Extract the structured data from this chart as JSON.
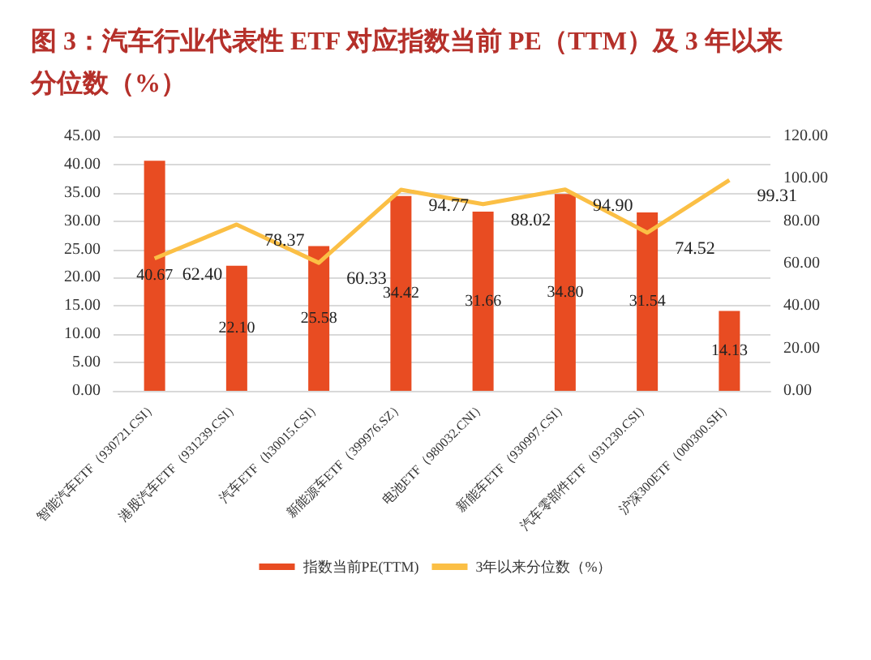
{
  "chart_data": {
    "type": "bar",
    "title": "图 3：汽车行业代表性 ETF 对应指数当前 PE（TTM）及 3 年以来分位数（%）",
    "categories": [
      "智能汽车ETF（930721.CSI）",
      "港股汽车ETF（931239.CSI）",
      "汽车ETF（h30015.CSI）",
      "新能源车ETF（399976.SZ）",
      "电池ETF（980032.CNI）",
      "新能车ETF（930997.CSI）",
      "汽车零部件ETF（931230.CSI）",
      "沪深300ETF（000300.SH）"
    ],
    "series": [
      {
        "name": "指数当前PE(TTM)",
        "color": "#e84c22",
        "values": [
          40.67,
          22.1,
          25.58,
          34.42,
          31.66,
          34.8,
          31.54,
          14.13
        ],
        "value_labels": [
          "40.67",
          "22.10",
          "25.58",
          "34.42",
          "31.66",
          "34.80",
          "31.54",
          "14.13"
        ]
      },
      {
        "name": "3年以来分位数（%）",
        "type": "line",
        "axis": "y2",
        "color": "#fbbf45",
        "marker": "none",
        "values": [
          62.4,
          78.37,
          60.33,
          94.77,
          88.02,
          94.9,
          74.52,
          99.31
        ],
        "value_labels": [
          "62.40",
          "78.37",
          "60.33",
          "94.77",
          "88.02",
          "94.90",
          "74.52",
          "99.31"
        ]
      }
    ],
    "ylim": [
      0,
      45
    ],
    "yticks": [
      {
        "value": 0,
        "label": "0.00"
      },
      {
        "value": 5,
        "label": "5.00"
      },
      {
        "value": 10,
        "label": "10.00"
      },
      {
        "value": 15,
        "label": "15.00"
      },
      {
        "value": 20,
        "label": "20.00"
      },
      {
        "value": 25,
        "label": "25.00"
      },
      {
        "value": 30,
        "label": "30.00"
      },
      {
        "value": 35,
        "label": "35.00"
      },
      {
        "value": 40,
        "label": "40.00"
      },
      {
        "value": 45,
        "label": "45.00"
      }
    ],
    "y2lim": [
      0,
      120
    ],
    "y2ticks": [
      {
        "value": 0,
        "label": "0.00"
      },
      {
        "value": 20,
        "label": "20.00"
      },
      {
        "value": 40,
        "label": "40.00"
      },
      {
        "value": 60,
        "label": "60.00"
      },
      {
        "value": 80,
        "label": "80.00"
      },
      {
        "value": 100,
        "label": "100.00"
      },
      {
        "value": 120,
        "label": "120.00"
      }
    ],
    "grid": "y",
    "legend": "bottom"
  }
}
